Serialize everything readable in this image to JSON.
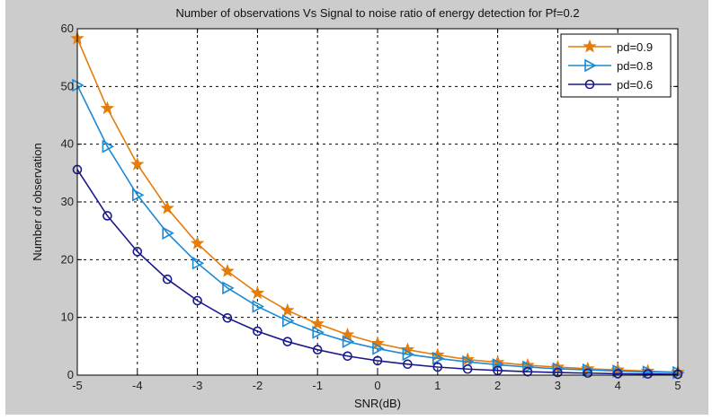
{
  "chart_data": {
    "type": "line",
    "title": "Number of observations Vs Signal to noise ratio of energy detection for Pf=0.2",
    "xlabel": "SNR(dB)",
    "ylabel": "Number of observation",
    "xlim": [
      -5,
      5
    ],
    "ylim": [
      0,
      60
    ],
    "xticks": [
      -5,
      -4,
      -3,
      -2,
      -1,
      0,
      1,
      2,
      3,
      4,
      5
    ],
    "xtick_labels": [
      "-5",
      "-4",
      "-3",
      "-2",
      "-1",
      "0",
      "1",
      "2",
      "3",
      "4",
      "5"
    ],
    "yticks": [
      0,
      10,
      20,
      30,
      40,
      50,
      60
    ],
    "ytick_labels": [
      "0",
      "10",
      "20",
      "30",
      "40",
      "50",
      "60"
    ],
    "grid": true,
    "legend_position": "top-right",
    "x": [
      -5,
      -4.5,
      -4,
      -3.5,
      -3,
      -2.5,
      -2,
      -1.5,
      -1,
      -0.5,
      0,
      0.5,
      1,
      1.5,
      2,
      2.5,
      3,
      3.5,
      4,
      4.5,
      5
    ],
    "series": [
      {
        "name": "pd=0.9",
        "color": "#e57c0a",
        "marker": "star",
        "values": [
          58.3,
          46.2,
          36.5,
          28.9,
          22.8,
          18.0,
          14.2,
          11.2,
          8.9,
          7.0,
          5.5,
          4.4,
          3.5,
          2.7,
          2.2,
          1.7,
          1.4,
          1.1,
          0.9,
          0.7,
          0.5
        ]
      },
      {
        "name": "pd=0.8",
        "color": "#1a8ad4",
        "marker": "triangle-right",
        "values": [
          50.2,
          39.6,
          31.2,
          24.6,
          19.4,
          15.1,
          11.9,
          9.4,
          7.4,
          5.8,
          4.6,
          3.6,
          2.9,
          2.3,
          1.8,
          1.4,
          1.1,
          0.9,
          0.7,
          0.55,
          0.45
        ]
      },
      {
        "name": "pd=0.6",
        "color": "#1a1a8c",
        "marker": "circle",
        "values": [
          35.6,
          27.6,
          21.4,
          16.6,
          12.9,
          9.9,
          7.6,
          5.8,
          4.4,
          3.3,
          2.5,
          1.9,
          1.4,
          1.05,
          0.8,
          0.6,
          0.45,
          0.35,
          0.25,
          0.2,
          0.15
        ]
      }
    ]
  }
}
